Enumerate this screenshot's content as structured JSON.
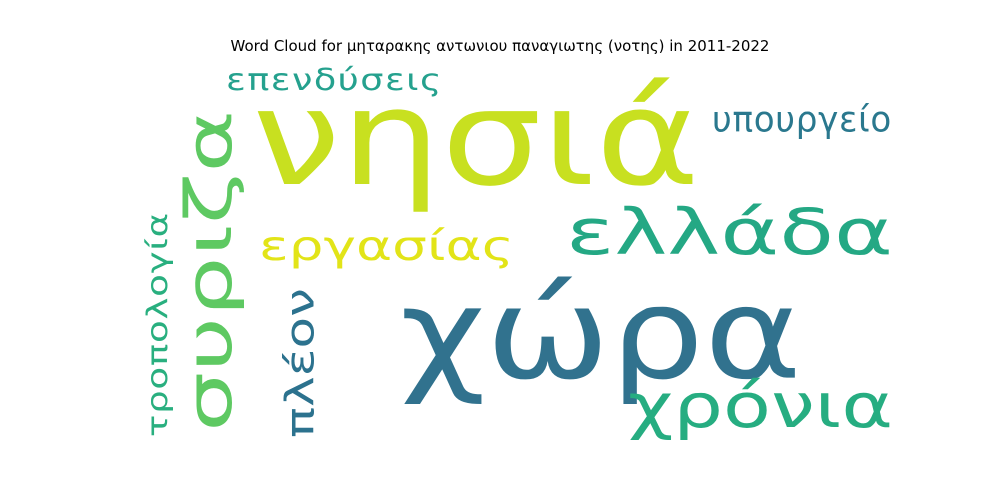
{
  "chart_data": {
    "type": "wordcloud",
    "title": "Word Cloud for μηταρακης αντωνιου παναγιωτης (νοτης) in 2011-2022",
    "words": [
      {
        "text": "χώρα",
        "weight": 1.0,
        "color": "#31728e",
        "orientation": "horizontal"
      },
      {
        "text": "νησιά",
        "weight": 0.9,
        "color": "#c8e020",
        "orientation": "horizontal"
      },
      {
        "text": "ελλάδα",
        "weight": 0.62,
        "color": "#24a884",
        "orientation": "horizontal"
      },
      {
        "text": "συριζα",
        "weight": 0.6,
        "color": "#5ec962",
        "orientation": "vertical"
      },
      {
        "text": "χρόνια",
        "weight": 0.5,
        "color": "#26ad81",
        "orientation": "horizontal"
      },
      {
        "text": "εργασίας",
        "weight": 0.4,
        "color": "#e2e418",
        "orientation": "horizontal"
      },
      {
        "text": "πλέον",
        "weight": 0.4,
        "color": "#2c728e",
        "orientation": "vertical"
      },
      {
        "text": "επενδύσεις",
        "weight": 0.3,
        "color": "#25a18e",
        "orientation": "horizontal"
      },
      {
        "text": "υπουργείο",
        "weight": 0.3,
        "color": "#2a788e",
        "orientation": "horizontal"
      },
      {
        "text": "τροπολογία",
        "weight": 0.3,
        "color": "#29af7f",
        "orientation": "vertical"
      }
    ]
  }
}
